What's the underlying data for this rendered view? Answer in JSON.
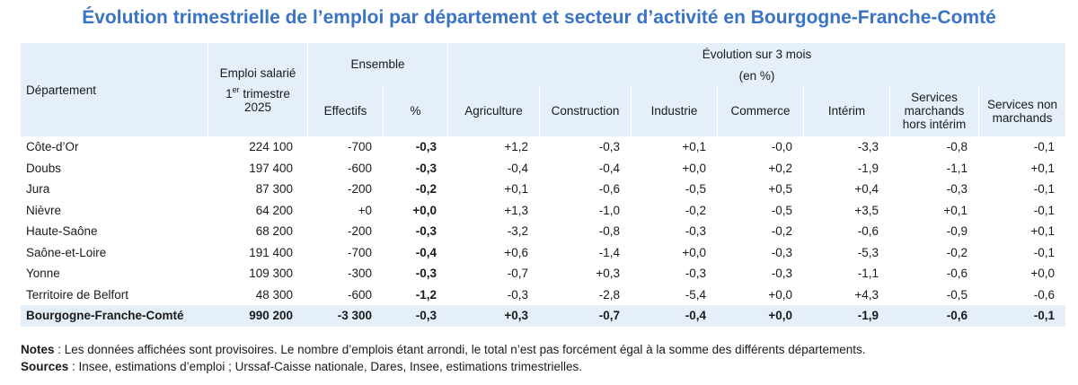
{
  "title": "Évolution trimestrielle de l’emploi par département et secteur d’activité en Bourgogne-Franche-Comté",
  "headers": {
    "departement": "Département",
    "emploi_l1": "Emploi salarié",
    "emploi_sup_prefix": "1",
    "emploi_sup": "er",
    "emploi_l2": " trimestre",
    "emploi_l3": "2025",
    "ensemble": "Ensemble",
    "evolution": "Évolution sur 3 mois",
    "evolution_unit": "(en %)",
    "effectifs": "Effectifs",
    "pct": "%",
    "agriculture": "Agriculture",
    "construction": "Construction",
    "industrie": "Industrie",
    "commerce": "Commerce",
    "interim": "Intérim",
    "services_marchands_l1": "Services",
    "services_marchands_l2": "marchands",
    "services_marchands_l3": "hors intérim",
    "services_non_l1": "Services non",
    "services_non_l2": "marchands"
  },
  "rows": [
    {
      "name": "Côte-d’Or",
      "emploi": "224 100",
      "effectifs": "-700",
      "pct": "-0,3",
      "agriculture": "+1,2",
      "construction": "-0,3",
      "industrie": "+0,1",
      "commerce": "-0,0",
      "interim": "-3,3",
      "services_marchands": "-0,8",
      "services_non": "-0,1"
    },
    {
      "name": "Doubs",
      "emploi": "197 400",
      "effectifs": "-600",
      "pct": "-0,3",
      "agriculture": "-0,4",
      "construction": "-0,4",
      "industrie": "+0,0",
      "commerce": "+0,2",
      "interim": "-1,9",
      "services_marchands": "-1,1",
      "services_non": "+0,1"
    },
    {
      "name": "Jura",
      "emploi": "87 300",
      "effectifs": "-200",
      "pct": "-0,2",
      "agriculture": "+0,1",
      "construction": "-0,6",
      "industrie": "-0,5",
      "commerce": "+0,5",
      "interim": "+0,4",
      "services_marchands": "-0,3",
      "services_non": "-0,1"
    },
    {
      "name": "Nièvre",
      "emploi": "64 200",
      "effectifs": "+0",
      "pct": "+0,0",
      "agriculture": "+1,3",
      "construction": "-1,0",
      "industrie": "-0,2",
      "commerce": "-0,5",
      "interim": "+3,5",
      "services_marchands": "+0,1",
      "services_non": "-0,1"
    },
    {
      "name": "Haute-Saône",
      "emploi": "68 200",
      "effectifs": "-200",
      "pct": "-0,3",
      "agriculture": "-3,2",
      "construction": "-0,8",
      "industrie": "-0,3",
      "commerce": "-0,2",
      "interim": "-0,6",
      "services_marchands": "-0,9",
      "services_non": "+0,1"
    },
    {
      "name": "Saône-et-Loire",
      "emploi": "191 400",
      "effectifs": "-700",
      "pct": "-0,4",
      "agriculture": "+0,6",
      "construction": "-1,4",
      "industrie": "+0,0",
      "commerce": "-0,3",
      "interim": "-5,3",
      "services_marchands": "-0,2",
      "services_non": "-0,1"
    },
    {
      "name": "Yonne",
      "emploi": "109 300",
      "effectifs": "-300",
      "pct": "-0,3",
      "agriculture": "-0,7",
      "construction": "+0,3",
      "industrie": "-0,3",
      "commerce": "-0,3",
      "interim": "-1,1",
      "services_marchands": "-0,6",
      "services_non": "+0,0"
    },
    {
      "name": "Territoire de Belfort",
      "emploi": "48 300",
      "effectifs": "-600",
      "pct": "-1,2",
      "agriculture": "-0,3",
      "construction": "-2,8",
      "industrie": "-5,4",
      "commerce": "+0,0",
      "interim": "+4,3",
      "services_marchands": "-0,5",
      "services_non": "-0,6"
    }
  ],
  "total": {
    "name": "Bourgogne-Franche-Comté",
    "emploi": "990 200",
    "effectifs": "-3 300",
    "pct": "-0,3",
    "agriculture": "+0,3",
    "construction": "-0,7",
    "industrie": "-0,4",
    "commerce": "+0,0",
    "interim": "-1,9",
    "services_marchands": "-0,6",
    "services_non": "-0,1"
  },
  "notes": {
    "notes_label": "Notes",
    "notes_text": " : Les données affichées sont provisoires. Le nombre d’emplois étant arrondi, le total n’est pas forcément égal à la somme des différents départements.",
    "sources_label": "Sources",
    "sources_text": " : Insee, estimations d’emploi ; Urssaf-Caisse nationale, Dares, Insee, estimations trimestrielles."
  }
}
